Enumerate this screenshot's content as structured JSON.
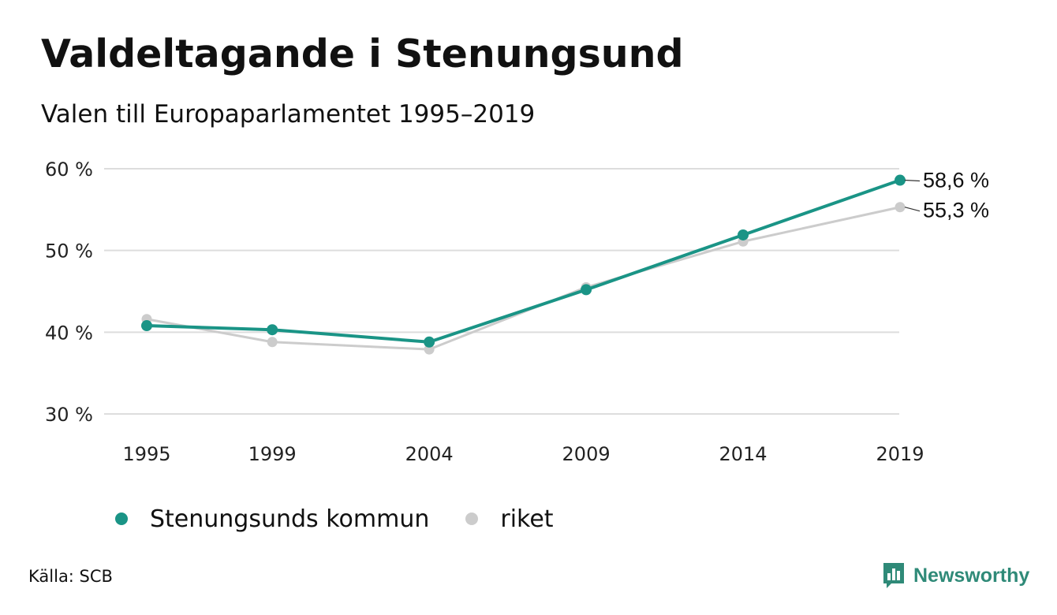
{
  "header": {
    "title": "Valdeltagande i Stenungsund",
    "subtitle": "Valen till Europaparlamentet 1995–2019"
  },
  "legend": [
    {
      "label": "Stenungsunds kommun",
      "color": "#1a9486"
    },
    {
      "label": "riket",
      "color": "#cccccc"
    }
  ],
  "footer": {
    "source": "Källa: SCB",
    "brand": "Newsworthy",
    "brand_icon": "bar-chart-speech-bubble-icon",
    "brand_color": "#2f8a78"
  },
  "chart_data": {
    "type": "line",
    "categories": [
      "1995",
      "1999",
      "2004",
      "2009",
      "2014",
      "2019"
    ],
    "x": [
      1995,
      1999,
      2004,
      2009,
      2014,
      2019
    ],
    "ylim": [
      30,
      60
    ],
    "yticks": [
      30,
      40,
      50,
      60
    ],
    "ytick_labels": [
      "30 %",
      "40 %",
      "50 %",
      "60 %"
    ],
    "grid": true,
    "legend_position": "bottom-left",
    "series": [
      {
        "name": "riket",
        "color": "#cccccc",
        "values": [
          41.6,
          38.8,
          37.9,
          45.5,
          51.1,
          55.3
        ],
        "end_label": "55,3 %"
      },
      {
        "name": "Stenungsunds kommun",
        "color": "#1a9486",
        "values": [
          40.8,
          40.3,
          38.8,
          45.2,
          51.9,
          58.6
        ],
        "end_label": "58,6 %"
      }
    ]
  }
}
